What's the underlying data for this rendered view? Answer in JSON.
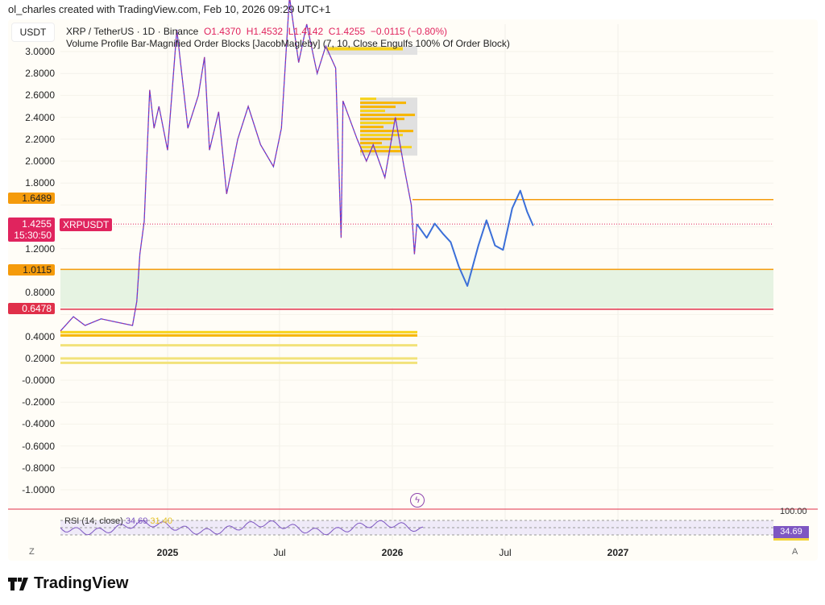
{
  "credit": "ol_charles created with TradingView.com, Feb 10, 2026 09:29 UTC+1",
  "currency": "USDT",
  "legend": {
    "symbol": "XRP / TetherUS · 1D · Binance",
    "open": "O1.4370",
    "high": "H1.4532",
    "low": "L1.4142",
    "close": "C1.4255",
    "change": "−0.0115 (−0.80%)",
    "indicator": "Volume Profile Bar-Magnified Order Blocks [JacobMagleby] (7, 10, Close Engulfs 100% Of Order Block)"
  },
  "price_axis": [
    "3.0000",
    "2.8000",
    "2.6000",
    "2.4000",
    "2.2000",
    "2.0000",
    "1.8000",
    "1.2000",
    "0.8000",
    "0.4000",
    "0.2000",
    "-0.0000",
    "-0.2000",
    "-0.4000",
    "-0.6000",
    "-0.8000",
    "-1.0000"
  ],
  "tags": {
    "resistance": "1.6489",
    "current_price": "1.4255",
    "countdown": "15:30:50",
    "symbol_tag": "XRPUSDT",
    "support": "1.0115",
    "lower_support": "0.6478"
  },
  "time_axis": [
    "2025",
    "Jul",
    "2026",
    "Jul",
    "2027"
  ],
  "rsi": {
    "label": "RSI (14, close)",
    "value": "34.69",
    "ma_value": "31.40",
    "top": "100.00"
  },
  "buttons": {
    "zoom": "Z",
    "auto": "A"
  },
  "brand": "TradingView",
  "colors": {
    "price": "#5b3fd6",
    "price_down": "#d6336c",
    "projection": "#3b6fd8",
    "orange": "#f59b0b",
    "red": "#e0304a",
    "zone": "#e6f3e2",
    "rsi": "#7e57c2"
  },
  "chart_data": {
    "type": "line",
    "price_series": [
      [
        "2024-07-11",
        0.45
      ],
      [
        "2024-08-01",
        0.58
      ],
      [
        "2024-08-20",
        0.5
      ],
      [
        "2024-09-15",
        0.56
      ],
      [
        "2024-10-10",
        0.53
      ],
      [
        "2024-11-05",
        0.5
      ],
      [
        "2024-11-12",
        0.72
      ],
      [
        "2024-11-17",
        1.15
      ],
      [
        "2024-11-24",
        1.45
      ],
      [
        "2024-12-03",
        2.65
      ],
      [
        "2024-12-10",
        2.3
      ],
      [
        "2024-12-18",
        2.5
      ],
      [
        "2025-01-01",
        2.1
      ],
      [
        "2025-01-16",
        3.2
      ],
      [
        "2025-02-03",
        2.3
      ],
      [
        "2025-02-20",
        2.6
      ],
      [
        "2025-03-02",
        2.95
      ],
      [
        "2025-03-10",
        2.1
      ],
      [
        "2025-03-25",
        2.45
      ],
      [
        "2025-04-07",
        1.7
      ],
      [
        "2025-04-25",
        2.2
      ],
      [
        "2025-05-12",
        2.5
      ],
      [
        "2025-06-01",
        2.15
      ],
      [
        "2025-06-22",
        1.95
      ],
      [
        "2025-07-05",
        2.3
      ],
      [
        "2025-07-18",
        3.5
      ],
      [
        "2025-08-02",
        2.9
      ],
      [
        "2025-08-15",
        3.25
      ],
      [
        "2025-09-01",
        2.8
      ],
      [
        "2025-09-15",
        3.05
      ],
      [
        "2025-10-01",
        2.85
      ],
      [
        "2025-10-10",
        1.3
      ],
      [
        "2025-10-13",
        2.55
      ],
      [
        "2025-11-05",
        2.2
      ],
      [
        "2025-11-20",
        2.0
      ],
      [
        "2025-12-01",
        2.15
      ],
      [
        "2025-12-20",
        1.85
      ],
      [
        "2026-01-06",
        2.4
      ],
      [
        "2026-01-20",
        1.95
      ],
      [
        "2026-02-01",
        1.6
      ],
      [
        "2026-02-06",
        1.15
      ],
      [
        "2026-02-10",
        1.4255
      ]
    ],
    "projection": [
      [
        "2026-02-10",
        1.4255
      ],
      [
        "2026-02-26",
        1.3
      ],
      [
        "2026-03-11",
        1.43
      ],
      [
        "2026-03-24",
        1.34
      ],
      [
        "2026-04-06",
        1.26
      ],
      [
        "2026-04-19",
        1.04
      ],
      [
        "2026-05-03",
        0.86
      ],
      [
        "2026-05-21",
        1.23
      ],
      [
        "2026-06-03",
        1.46
      ],
      [
        "2026-06-17",
        1.23
      ],
      [
        "2026-06-30",
        1.19
      ],
      [
        "2026-07-15",
        1.57
      ],
      [
        "2026-07-28",
        1.73
      ],
      [
        "2026-08-08",
        1.54
      ],
      [
        "2026-08-18",
        1.41
      ]
    ],
    "levels": {
      "resistance": 1.6489,
      "support": 1.0115,
      "lower_support": 0.6478,
      "current": 1.4255
    },
    "ylim": [
      -1.1,
      3.2
    ]
  }
}
